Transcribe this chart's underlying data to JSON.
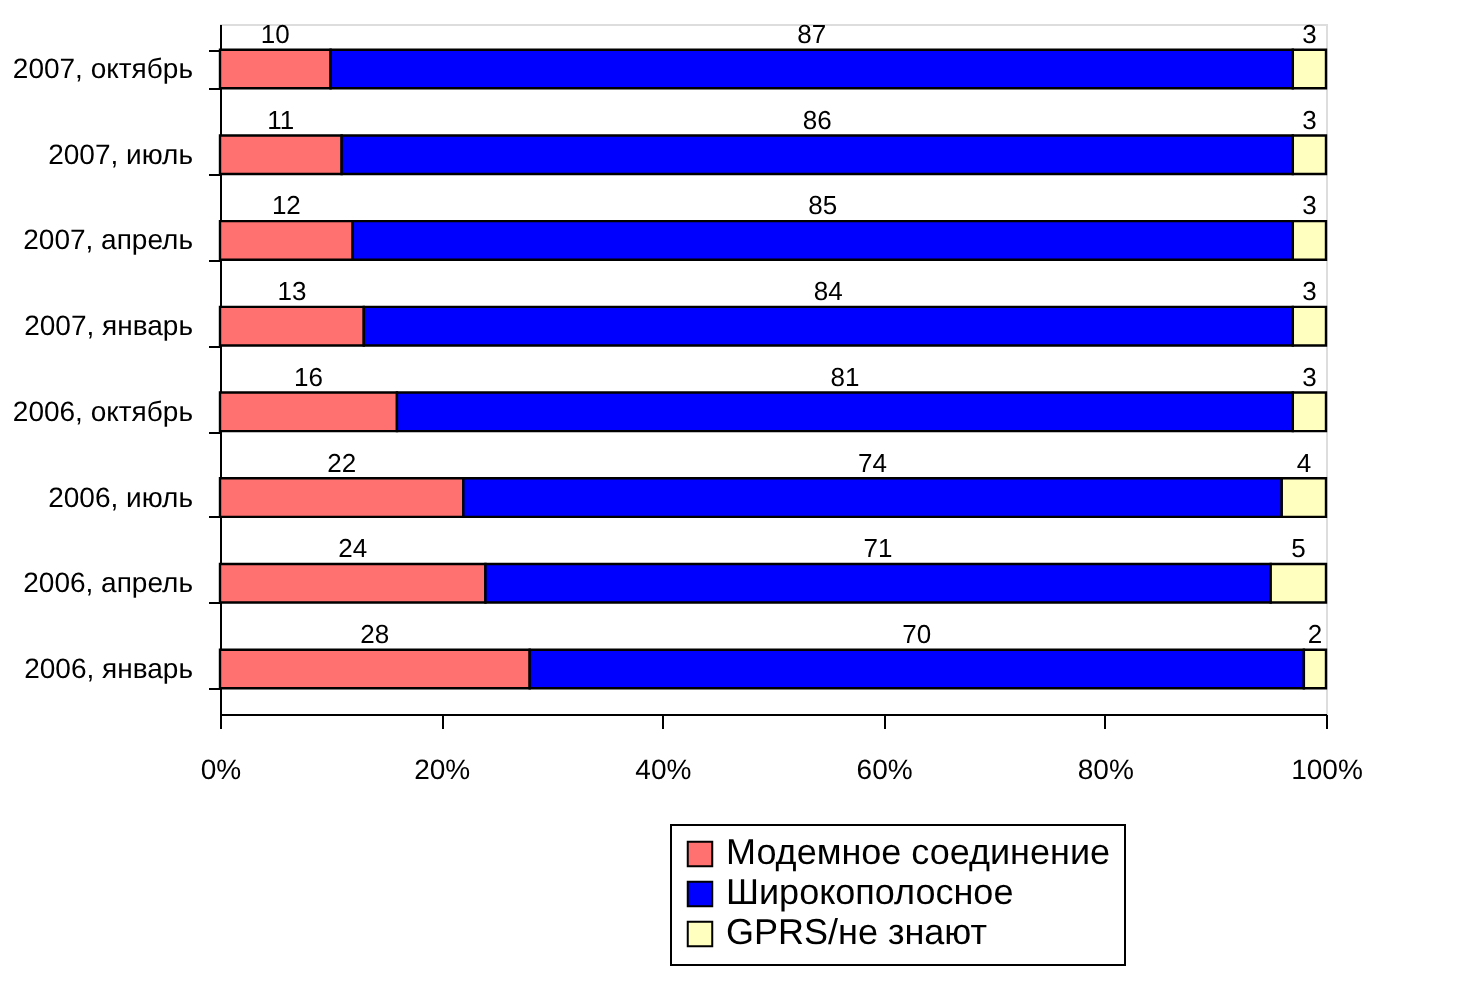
{
  "chart_data": {
    "type": "bar",
    "orientation": "horizontal",
    "stacked": true,
    "data_labels": true,
    "legend": "bottom",
    "grid": false,
    "categories": [
      "2007, октябрь",
      "2007, июль",
      "2007, апрель",
      "2007, январь",
      "2006, октябрь",
      "2006, июль",
      "2006, апрель",
      "2006, январь"
    ],
    "series": [
      {
        "name": "Модемное соединение",
        "color": "#ff7070",
        "values": [
          10,
          11,
          12,
          13,
          16,
          22,
          24,
          28
        ]
      },
      {
        "name": "Широкополосное",
        "color": "#0000ff",
        "values": [
          87,
          86,
          85,
          84,
          81,
          74,
          71,
          70
        ]
      },
      {
        "name": "GPRS/не знают",
        "color": "#ffffc0",
        "values": [
          3,
          3,
          3,
          3,
          3,
          4,
          5,
          2
        ]
      }
    ],
    "xlim": [
      0,
      100
    ],
    "xticks": [
      {
        "value": 0,
        "label": "0%"
      },
      {
        "value": 20,
        "label": "20%"
      },
      {
        "value": 40,
        "label": "40%"
      },
      {
        "value": 60,
        "label": "60%"
      },
      {
        "value": 80,
        "label": "80%"
      },
      {
        "value": 100,
        "label": "100%"
      }
    ]
  }
}
